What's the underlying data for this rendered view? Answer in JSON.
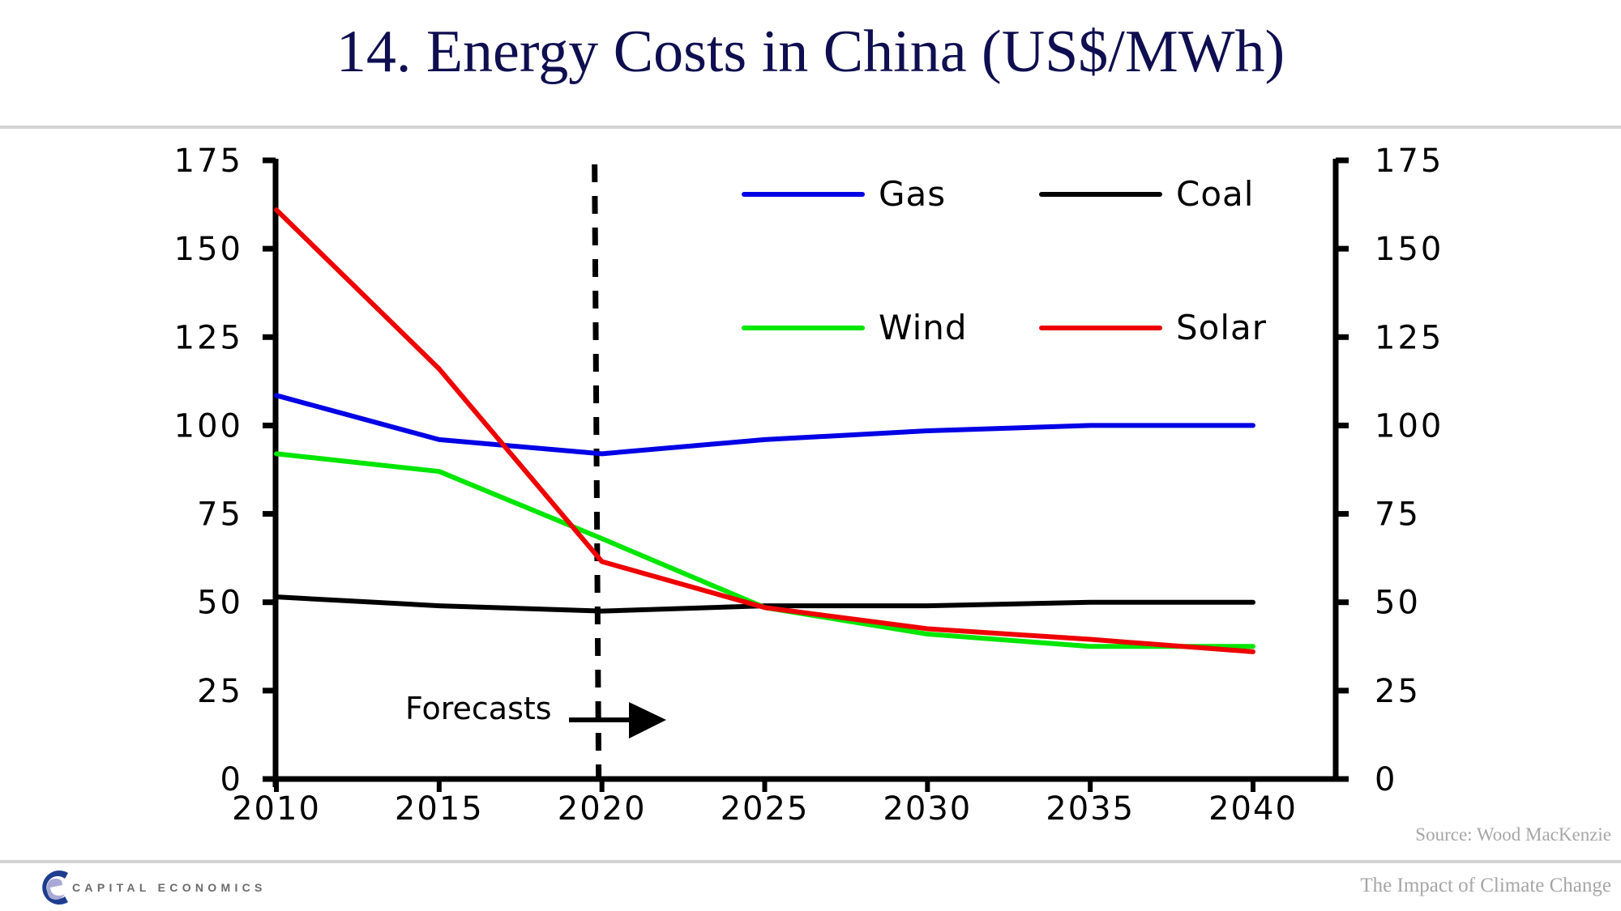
{
  "slide": {
    "title": "14. Energy Costs in China (US$/MWh)",
    "source": "Source: Wood MacKenzie",
    "footer_title": "The Impact of Climate Change",
    "brand": "CAPITAL ECONOMICS",
    "brand_color": "#1f3d8f"
  },
  "chart_data": {
    "type": "line",
    "title": "14. Energy Costs in China (US$/MWh)",
    "xlabel": "",
    "ylabel": "US$/MWh",
    "x": [
      2010,
      2015,
      2020,
      2025,
      2030,
      2035,
      2040
    ],
    "x_ticks": [
      "2010",
      "2015",
      "2020",
      "2025",
      "2030",
      "2035",
      "2040"
    ],
    "ylim": [
      0,
      175
    ],
    "y_ticks": [
      0,
      25,
      50,
      75,
      100,
      125,
      150,
      175
    ],
    "y_ticks_right": [
      0,
      25,
      50,
      75,
      100,
      125,
      150,
      175
    ],
    "grid": false,
    "legend_position": "top-right",
    "series": [
      {
        "name": "Gas",
        "color": "#0000e6",
        "values": [
          108.5,
          96,
          92,
          96,
          98.5,
          100,
          100
        ]
      },
      {
        "name": "Coal",
        "color": "#000000",
        "values": [
          51.5,
          49,
          47.5,
          49,
          49,
          50,
          50
        ]
      },
      {
        "name": "Wind",
        "color": "#00e600",
        "values": [
          92,
          87,
          68,
          48.5,
          41,
          37.5,
          37.5
        ]
      },
      {
        "name": "Solar",
        "color": "#ee0000",
        "values": [
          161,
          116,
          61.5,
          48.5,
          42.5,
          39.5,
          36
        ]
      }
    ],
    "annotations": [
      {
        "type": "vertical-dashed-line",
        "x": 2020,
        "label": ""
      },
      {
        "type": "text-arrow",
        "text": "Forecasts",
        "direction": "right"
      }
    ]
  }
}
